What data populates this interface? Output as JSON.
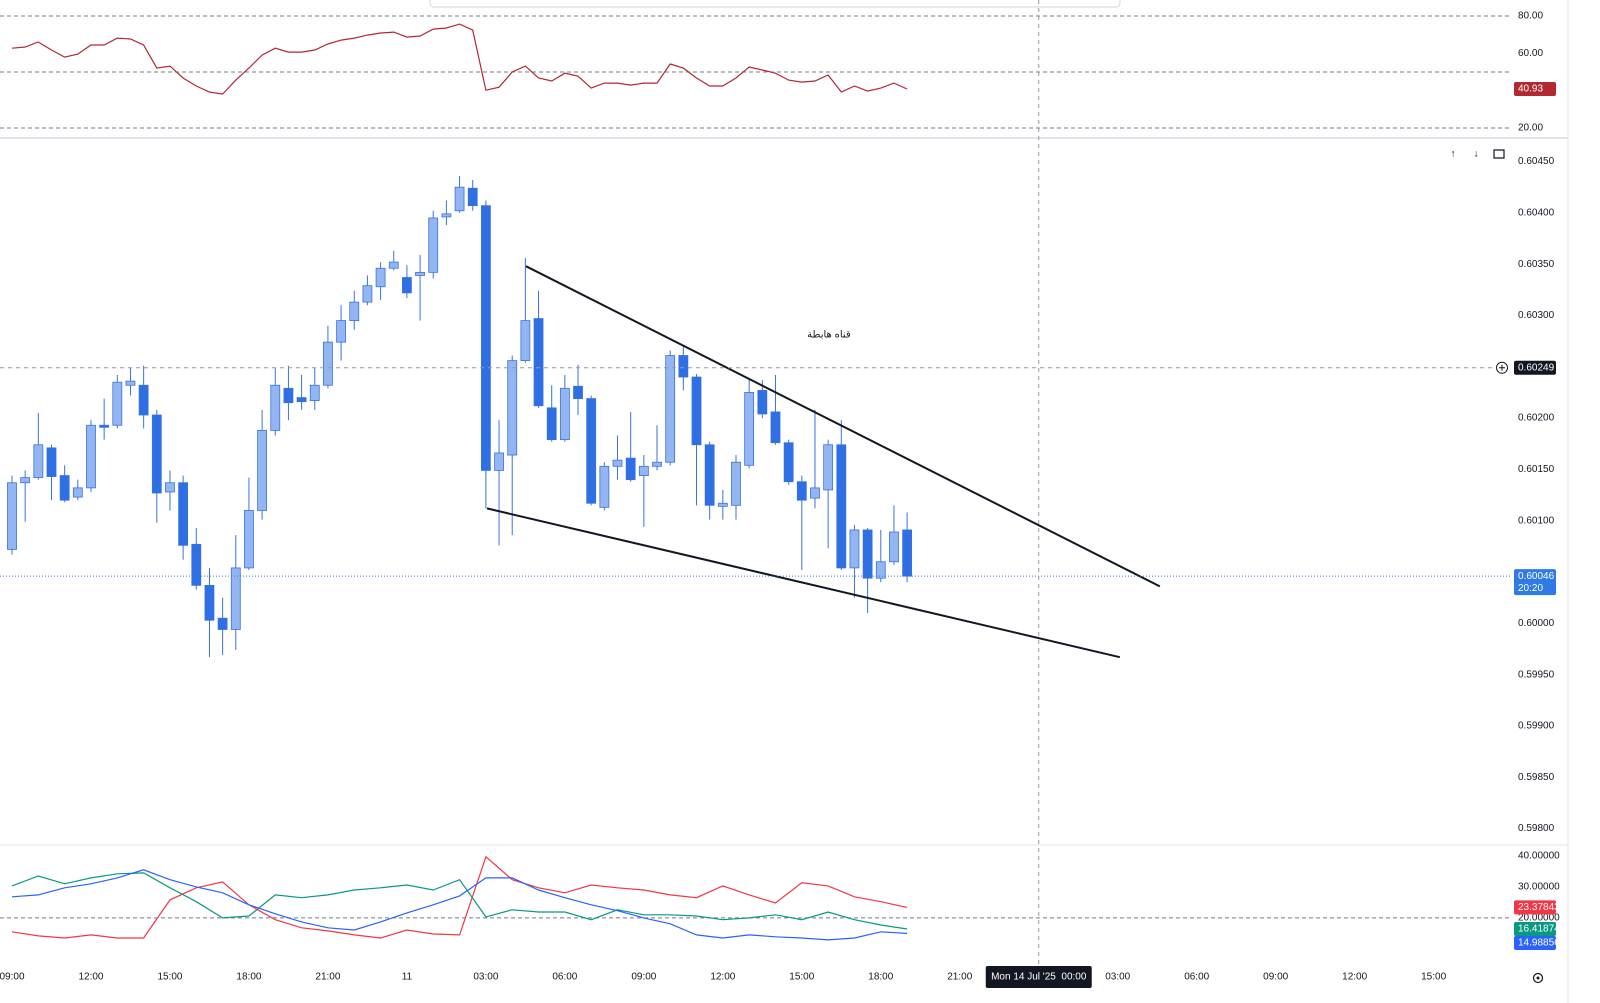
{
  "chart_data": [
    {
      "type": "line",
      "x": [
        0,
        0.5,
        1,
        1.5,
        2,
        2.5,
        3,
        3.5,
        4,
        4.5,
        5,
        5.5,
        6,
        6.5,
        7,
        7.5,
        8,
        8.5,
        9,
        9.5,
        10,
        10.5,
        11,
        11.5,
        12,
        12.5,
        13,
        13.5,
        14,
        14.5,
        15,
        15.5,
        16,
        16.5,
        17,
        17.5,
        18,
        18.5,
        19,
        19.5,
        20,
        20.5,
        21,
        21.5,
        22,
        22.5,
        23,
        23.5,
        24,
        24.5,
        25,
        25.5,
        26,
        26.5,
        27,
        27.5,
        28,
        28.5,
        29,
        29.5,
        30,
        30.5,
        31,
        31.5,
        32,
        32.5,
        33,
        33.5,
        34
      ],
      "xlim": [
        -0.456,
        56.9
      ],
      "series": [
        {
          "color": "#b22833",
          "values": [
            62.8,
            63.4,
            66.1,
            61.8,
            58.0,
            59.6,
            64.5,
            64.5,
            68.2,
            67.7,
            64.5,
            52.1,
            53.2,
            46.8,
            42.5,
            39.3,
            38.2,
            45.7,
            52.1,
            59.1,
            62.8,
            60.7,
            60.7,
            61.8,
            65.0,
            67.1,
            68.2,
            69.8,
            70.9,
            71.4,
            68.7,
            69.3,
            73.0,
            73.6,
            75.7,
            72.5,
            40.3,
            41.9,
            50.0,
            53.2,
            46.8,
            45.2,
            49.4,
            47.8,
            41.4,
            44.1,
            44.1,
            43.0,
            44.1,
            44.1,
            54.3,
            52.1,
            46.8,
            42.5,
            42.5,
            46.8,
            52.7,
            51.1,
            49.4,
            45.7,
            44.6,
            45.2,
            48.4,
            39.3,
            42.5,
            39.8,
            41.4,
            44.1,
            40.93
          ]
        }
      ],
      "ylim": [
        15.2,
        88.6
      ],
      "yticks": [
        {
          "value": 80,
          "label": "80.00"
        },
        {
          "value": 60,
          "label": "60.00"
        },
        {
          "value": 20,
          "label": "20.00"
        }
      ],
      "levels": [
        80,
        50,
        20
      ]
    },
    {
      "type": "candlestick",
      "x": [
        0,
        0.5,
        1,
        1.5,
        2,
        2.5,
        3,
        3.5,
        4,
        4.5,
        5,
        5.5,
        6,
        6.5,
        7,
        7.5,
        8,
        8.5,
        9,
        9.5,
        10,
        10.5,
        11,
        11.5,
        12,
        12.5,
        13,
        13.5,
        14,
        14.5,
        15,
        15.5,
        16,
        16.5,
        17,
        17.5,
        18,
        18.5,
        19,
        19.5,
        20,
        20.5,
        21,
        21.5,
        22,
        22.5,
        23,
        23.5,
        24,
        24.5,
        25,
        25.5,
        26,
        26.5,
        27,
        27.5,
        28,
        28.5,
        29,
        29.5,
        30,
        30.5,
        31,
        31.5,
        32,
        32.5,
        33,
        33.5,
        34
      ],
      "open": [
        0.60072,
        0.60137,
        0.60142,
        0.60171,
        0.60144,
        0.60123,
        0.60132,
        0.60193,
        0.60193,
        0.60232,
        0.60232,
        0.60203,
        0.60128,
        0.60137,
        0.60077,
        0.60037,
        0.60005,
        0.59994,
        0.60054,
        0.6011,
        0.60188,
        0.60229,
        0.6022,
        0.60217,
        0.60232,
        0.60274,
        0.60295,
        0.60313,
        0.60328,
        0.60346,
        0.60337,
        0.60339,
        0.60342,
        0.60396,
        0.60402,
        0.60424,
        0.60407,
        0.60149,
        0.60164,
        0.60256,
        0.60297,
        0.6021,
        0.60179,
        0.60231,
        0.60219,
        0.60113,
        0.60153,
        0.60161,
        0.60144,
        0.60153,
        0.60157,
        0.60261,
        0.6024,
        0.60174,
        0.60114,
        0.60115,
        0.60154,
        0.60227,
        0.60206,
        0.60176,
        0.60138,
        0.60122,
        0.6013,
        0.60174,
        0.60054,
        0.60091,
        0.60044,
        0.6006,
        0.60091
      ],
      "high": [
        0.60144,
        0.60149,
        0.60205,
        0.60174,
        0.60154,
        0.6014,
        0.60198,
        0.60219,
        0.60242,
        0.60249,
        0.60251,
        0.60208,
        0.60149,
        0.60144,
        0.60093,
        0.60054,
        0.60025,
        0.60086,
        0.60142,
        0.60208,
        0.60249,
        0.60251,
        0.60242,
        0.60249,
        0.6029,
        0.6031,
        0.60324,
        0.60339,
        0.60352,
        0.60363,
        0.60349,
        0.60359,
        0.60402,
        0.60412,
        0.60436,
        0.60432,
        0.60412,
        0.60198,
        0.60261,
        0.60356,
        0.60324,
        0.60232,
        0.60242,
        0.60252,
        0.60222,
        0.60157,
        0.60183,
        0.60206,
        0.60164,
        0.60193,
        0.60266,
        0.60271,
        0.60243,
        0.60177,
        0.6013,
        0.60164,
        0.60239,
        0.60237,
        0.60242,
        0.60179,
        0.60144,
        0.60208,
        0.60179,
        0.60198,
        0.60096,
        0.60093,
        0.60091,
        0.60115,
        0.60108
      ],
      "low": [
        0.60067,
        0.60099,
        0.6014,
        0.6012,
        0.60118,
        0.6012,
        0.60128,
        0.60179,
        0.6019,
        0.60222,
        0.6019,
        0.60098,
        0.6011,
        0.60062,
        0.60033,
        0.59967,
        0.59969,
        0.59974,
        0.60052,
        0.60101,
        0.60183,
        0.60198,
        0.60208,
        0.60208,
        0.60229,
        0.60256,
        0.60286,
        0.6031,
        0.60315,
        0.60344,
        0.60317,
        0.60295,
        0.60336,
        0.60388,
        0.604,
        0.60402,
        0.60112,
        0.60076,
        0.60086,
        0.60254,
        0.6021,
        0.60177,
        0.60177,
        0.60203,
        0.60115,
        0.6011,
        0.6014,
        0.60138,
        0.60094,
        0.60149,
        0.60154,
        0.60227,
        0.60115,
        0.60101,
        0.60101,
        0.60101,
        0.60151,
        0.602,
        0.60174,
        0.60135,
        0.60052,
        0.60112,
        0.60073,
        0.60052,
        0.60025,
        0.6001,
        0.6004,
        0.60057,
        0.6004
      ],
      "close": [
        0.60137,
        0.60142,
        0.60174,
        0.60143,
        0.6012,
        0.60132,
        0.60193,
        0.60191,
        0.60235,
        0.60236,
        0.60203,
        0.60127,
        0.60137,
        0.60076,
        0.60037,
        0.60003,
        0.59994,
        0.60054,
        0.6011,
        0.60188,
        0.60232,
        0.60215,
        0.60216,
        0.60232,
        0.60274,
        0.60295,
        0.60313,
        0.60329,
        0.60346,
        0.60352,
        0.60322,
        0.60342,
        0.60395,
        0.60399,
        0.60425,
        0.60407,
        0.60149,
        0.60166,
        0.60256,
        0.60295,
        0.60212,
        0.60179,
        0.60229,
        0.60219,
        0.60117,
        0.60153,
        0.60159,
        0.6014,
        0.60153,
        0.60157,
        0.60261,
        0.6024,
        0.60174,
        0.60115,
        0.60117,
        0.60157,
        0.60225,
        0.60204,
        0.60176,
        0.60138,
        0.6012,
        0.60132,
        0.60174,
        0.60054,
        0.60091,
        0.60044,
        0.6006,
        0.60089,
        0.60046
      ],
      "colors": {
        "up": "#93b6f3",
        "down": "#2f6fe4",
        "wick": "#3a72df",
        "last_price": "#2f7be5"
      },
      "xlim": [
        -0.456,
        56.9
      ],
      "xticks": [
        {
          "value": 0,
          "label": "09:00"
        },
        {
          "value": 3,
          "label": "12:00"
        },
        {
          "value": 6,
          "label": "15:00"
        },
        {
          "value": 9,
          "label": "18:00"
        },
        {
          "value": 12,
          "label": "21:00"
        },
        {
          "value": 15,
          "label": "11"
        },
        {
          "value": 18,
          "label": "03:00"
        },
        {
          "value": 21,
          "label": "06:00"
        },
        {
          "value": 24,
          "label": "09:00"
        },
        {
          "value": 27,
          "label": "12:00"
        },
        {
          "value": 30,
          "label": "15:00"
        },
        {
          "value": 33,
          "label": "18:00"
        },
        {
          "value": 36,
          "label": "21:00"
        },
        {
          "value": 42,
          "label": "03:00"
        },
        {
          "value": 45,
          "label": "06:00"
        },
        {
          "value": 48,
          "label": "09:00"
        },
        {
          "value": 51,
          "label": "12:00"
        },
        {
          "value": 54,
          "label": "15:00"
        }
      ],
      "ylim": [
        0.59784,
        0.6047
      ],
      "yticks": [
        {
          "value": 0.6045,
          "label": "0.60450"
        },
        {
          "value": 0.604,
          "label": "0.60400"
        },
        {
          "value": 0.6035,
          "label": "0.60350"
        },
        {
          "value": 0.603,
          "label": "0.60300"
        },
        {
          "value": 0.602,
          "label": "0.60200"
        },
        {
          "value": 0.6015,
          "label": "0.60150"
        },
        {
          "value": 0.601,
          "label": "0.60100"
        },
        {
          "value": 0.6,
          "label": "0.60000"
        },
        {
          "value": 0.5995,
          "label": "0.59950"
        },
        {
          "value": 0.599,
          "label": "0.59900"
        },
        {
          "value": 0.5985,
          "label": "0.59850"
        },
        {
          "value": 0.598,
          "label": "0.59800"
        }
      ],
      "trendlines": [
        {
          "x": [
            19.52,
            43.6
          ],
          "y": [
            0.60348,
            0.60036
          ]
        },
        {
          "x": [
            18.04,
            42.08
          ],
          "y": [
            0.60112,
            0.59967
          ]
        }
      ],
      "annotations": [
        {
          "text": "قناه هابطة",
          "x": 31.03,
          "y": 0.60281
        }
      ],
      "countdown": "20:20",
      "crosshair": {
        "x": 39,
        "x_label": "Mon 14 Jul '25  00:00",
        "y": 0.60249
      },
      "pane_buttons": [
        "↑",
        "↓"
      ]
    },
    {
      "type": "line",
      "x": [
        0,
        1,
        2,
        3,
        4,
        5,
        6,
        7,
        8,
        9,
        10,
        11,
        12,
        13,
        14,
        15,
        16,
        17,
        18,
        19,
        20,
        21,
        22,
        23,
        24,
        25,
        26,
        27,
        28,
        29,
        30,
        31,
        32,
        33,
        34
      ],
      "xlim": [
        -0.456,
        56.9
      ],
      "series": [
        {
          "color": "#f23645",
          "values": [
            15.5,
            14.2,
            13.5,
            14.5,
            13.5,
            13.5,
            25.8,
            29.7,
            31.6,
            24.2,
            19.4,
            16.8,
            15.8,
            14.5,
            13.5,
            16.1,
            14.8,
            14.5,
            39.7,
            32.3,
            29.7,
            28.1,
            30.6,
            29.7,
            29.0,
            27.4,
            26.5,
            30.3,
            27.4,
            24.8,
            31.3,
            30.3,
            26.8,
            25.2,
            23.37843
          ]
        },
        {
          "color": "#089981",
          "values": [
            30.3,
            33.5,
            31.0,
            32.9,
            34.2,
            34.5,
            29.7,
            25.2,
            20.0,
            20.6,
            27.4,
            26.5,
            27.4,
            29.0,
            29.7,
            30.6,
            29.0,
            32.3,
            20.3,
            22.6,
            21.9,
            21.9,
            19.4,
            22.6,
            21.0,
            21.0,
            20.6,
            19.4,
            20.0,
            21.0,
            19.4,
            21.9,
            19.4,
            17.7,
            16.41874
          ]
        },
        {
          "color": "#2962ff",
          "values": [
            26.8,
            27.4,
            29.7,
            31.0,
            32.9,
            35.5,
            32.3,
            30.0,
            28.1,
            24.2,
            21.3,
            18.7,
            16.8,
            16.1,
            18.7,
            21.6,
            24.2,
            27.1,
            32.9,
            32.9,
            29.0,
            26.5,
            24.2,
            22.3,
            20.0,
            18.1,
            14.5,
            13.5,
            14.5,
            13.9,
            13.5,
            12.9,
            13.5,
            15.5,
            14.98856
          ]
        }
      ],
      "ylim": [
        4.8,
        43.5
      ],
      "yticks": [
        {
          "value": 40,
          "label": "40.00000"
        },
        {
          "value": 30,
          "label": "30.00000"
        },
        {
          "value": 20,
          "label": "20.00000"
        }
      ],
      "levels": [
        20
      ]
    }
  ]
}
